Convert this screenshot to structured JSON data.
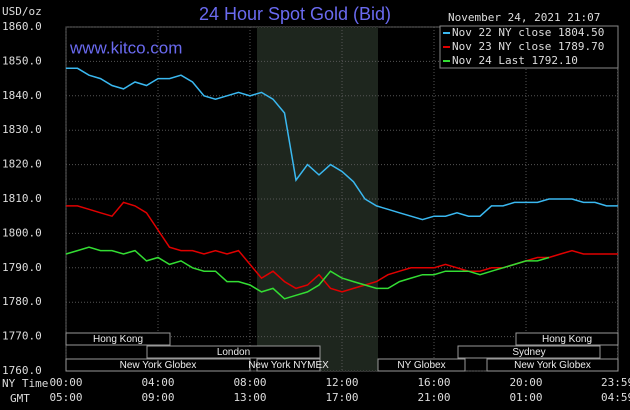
{
  "chart_data": {
    "type": "line",
    "title": "24 Hour Spot Gold (Bid)",
    "ylabel": "USD/oz",
    "timestamp": "November 24, 2021 21:07",
    "watermark": "www.kitco.com",
    "xlabel": "NY Time",
    "x2label": "GMT",
    "x": [
      0,
      0.5,
      1,
      1.5,
      2,
      2.5,
      3,
      3.5,
      4,
      4.5,
      5,
      5.5,
      6,
      6.5,
      7,
      7.5,
      8,
      8.5,
      9,
      9.5,
      10,
      10.5,
      11,
      11.5,
      12,
      12.5,
      13,
      13.5,
      14,
      14.5,
      15,
      15.5,
      16,
      16.5,
      17,
      17.5,
      18,
      18.5,
      19,
      19.5,
      20,
      20.5,
      21,
      21.5,
      22,
      22.5,
      23,
      23.5,
      24
    ],
    "series": [
      {
        "name": "Nov 22 NY close 1804.50",
        "color": "#3ab8f0",
        "values": [
          1848,
          1848,
          1846,
          1845,
          1843,
          1842,
          1844,
          1843,
          1845,
          1845,
          1846,
          1844,
          1840,
          1839,
          1840,
          1841,
          1840,
          1841,
          1839,
          1835,
          1815.5,
          1820,
          1817,
          1820,
          1818,
          1815,
          1810,
          1808,
          1807,
          1806,
          1805,
          1804,
          1805,
          1805,
          1806,
          1805,
          1805,
          1808,
          1808,
          1809,
          1809,
          1809,
          1810,
          1810,
          1810,
          1809,
          1809,
          1808,
          1808
        ]
      },
      {
        "name": "Nov 23 NY close 1789.70",
        "color": "#e00000",
        "values": [
          1808,
          1808,
          1807,
          1806,
          1805,
          1809,
          1808,
          1806,
          1801,
          1796,
          1795,
          1795,
          1794,
          1795,
          1794,
          1795,
          1791,
          1787,
          1789,
          1786,
          1784,
          1785,
          1788,
          1784,
          1783,
          1784,
          1785,
          1786,
          1788,
          1789,
          1790,
          1790,
          1790,
          1791,
          1790,
          1789,
          1789,
          1790,
          1790,
          1791,
          1792,
          1793,
          1793,
          1794,
          1795,
          1794,
          1794,
          1794,
          1794
        ]
      },
      {
        "name": "Nov 24 Last 1792.10",
        "color": "#33dd33",
        "values": [
          1794,
          1795,
          1796,
          1795,
          1795,
          1794,
          1795,
          1792,
          1793,
          1791,
          1792,
          1790,
          1789,
          1789,
          1786,
          1786,
          1785,
          1783,
          1784,
          1781,
          1782,
          1783,
          1785,
          1789,
          1787,
          1786,
          1785,
          1784,
          1784,
          1786,
          1787,
          1788,
          1788,
          1789,
          1789,
          1789,
          1788,
          1789,
          1790,
          1791,
          1792,
          1792,
          1793,
          null,
          null,
          null,
          null,
          null,
          null
        ]
      }
    ],
    "xlim": [
      0,
      24
    ],
    "xticks": [
      {
        "value": 0,
        "label": "00:00"
      },
      {
        "value": 4,
        "label": "04:00"
      },
      {
        "value": 8,
        "label": "08:00"
      },
      {
        "value": 12,
        "label": "12:00"
      },
      {
        "value": 16,
        "label": "16:00"
      },
      {
        "value": 20,
        "label": "20:00"
      },
      {
        "value": 23.98,
        "label": "23:59"
      }
    ],
    "x2ticklabels": [
      "05:00",
      "09:00",
      "13:00",
      "17:00",
      "21:00",
      "01:00",
      "04:59"
    ],
    "ylim": [
      1760,
      1860
    ],
    "yticks": [
      {
        "value": 1760,
        "label": "1760.0"
      },
      {
        "value": 1770,
        "label": "1770.0"
      },
      {
        "value": 1780,
        "label": "1780.0"
      },
      {
        "value": 1790,
        "label": "1790.0"
      },
      {
        "value": 1800,
        "label": "1800.0"
      },
      {
        "value": 1810,
        "label": "1810.0"
      },
      {
        "value": 1820,
        "label": "1820.0"
      },
      {
        "value": 1830,
        "label": "1830.0"
      },
      {
        "value": 1840,
        "label": "1840.0"
      },
      {
        "value": 1850,
        "label": "1850.0"
      },
      {
        "value": 1860,
        "label": "1860.0"
      }
    ],
    "grid": true,
    "sessions": [
      "Hong Kong",
      "London",
      "New York Globex",
      "New York NYMEX",
      "NY Globex",
      "Sydney",
      "Hong Kong",
      "New York Globex"
    ]
  }
}
